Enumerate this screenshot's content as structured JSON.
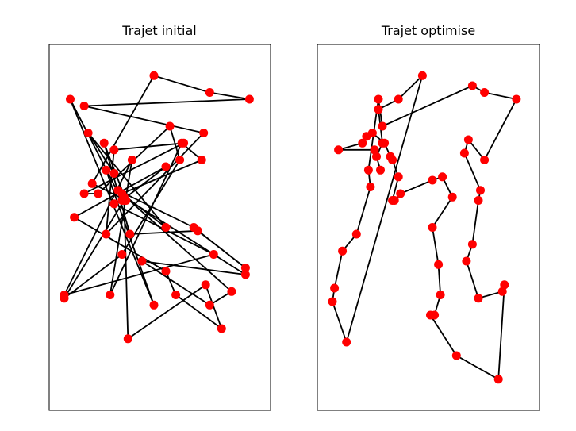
{
  "figure": {
    "background": "#ffffff",
    "point_color": "#ff0000",
    "line_color": "#000000"
  },
  "chart_data": [
    {
      "type": "line",
      "title": "Trajet initial",
      "xlabel": "",
      "ylabel": "",
      "grid": false,
      "legend": false,
      "closed": true,
      "ticks_visible": false,
      "xlim": [
        0,
        100
      ],
      "ylim": [
        0,
        100
      ],
      "series": [
        {
          "x": [
            47,
            75,
            95,
            12,
            72,
            23,
            27,
            62,
            12,
            19,
            55,
            60,
            31,
            2,
            32,
            27,
            77,
            2,
            36,
            25,
            61,
            71,
            31,
            53,
            14,
            27,
            23,
            47,
            5,
            31,
            53,
            7,
            53,
            58,
            81,
            73,
            34,
            32,
            93,
            41,
            75,
            86,
            29,
            67,
            93,
            69,
            35,
            22,
            33,
            16
          ],
          "y": [
            95,
            90,
            88,
            86,
            78,
            48,
            73,
            75,
            60,
            60,
            80,
            70,
            42,
            29,
            58,
            57,
            42,
            30,
            70,
            30,
            75,
            70,
            60,
            50,
            78,
            66,
            67,
            27,
            88,
            58,
            68,
            53,
            37,
            30,
            20,
            33,
            17,
            59,
            36,
            40,
            27,
            31,
            61,
            50,
            38,
            49,
            48,
            75,
            58,
            63
          ]
        }
      ]
    },
    {
      "type": "line",
      "title": "Trajet optimise",
      "xlabel": "",
      "ylabel": "",
      "grid": false,
      "legend": false,
      "closed": true,
      "ticks_visible": false,
      "xlim": [
        0,
        100
      ],
      "ylim": [
        0,
        100
      ],
      "series": [
        {
          "x": [
            47,
            35,
            25,
            27,
            24,
            26,
            23,
            5,
            17,
            19,
            22,
            28,
            31,
            32,
            35,
            32,
            33,
            36,
            52,
            57,
            62,
            52,
            55,
            56,
            53,
            51,
            64,
            85,
            88,
            87,
            75,
            69,
            72,
            75,
            76,
            68,
            70,
            78,
            94,
            78,
            72,
            27,
            25,
            20,
            21,
            14,
            7,
            3,
            2,
            9
          ],
          "y": [
            95,
            88,
            85,
            75,
            71,
            67,
            73,
            73,
            75,
            77,
            78,
            75,
            71,
            70,
            65,
            58,
            58,
            60,
            64,
            65,
            59,
            50,
            39,
            30,
            24,
            24,
            12,
            5,
            33,
            31,
            29,
            40,
            45,
            58,
            61,
            72,
            76,
            70,
            88,
            90,
            92,
            80,
            88,
            67,
            62,
            48,
            43,
            32,
            28,
            16
          ]
        }
      ]
    }
  ]
}
